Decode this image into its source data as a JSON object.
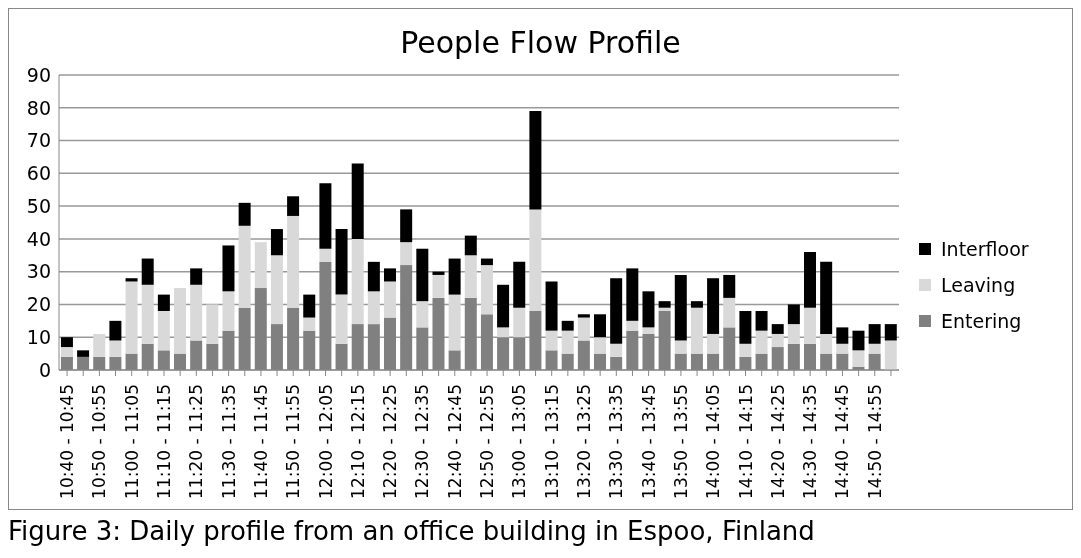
{
  "chart_data": {
    "type": "bar",
    "title": "People Flow Profile",
    "stacked": true,
    "grid": "y",
    "legend": "right",
    "categories": [
      "10:40 - 10:45",
      null,
      "10:50 - 10:55",
      null,
      "11:00 - 11:05",
      null,
      "11:10 - 11:15",
      null,
      "11:20 - 11:25",
      null,
      "11:30 - 11:35",
      null,
      "11:40 - 11:45",
      null,
      "11:50 - 11:55",
      null,
      "12:00 - 12:05",
      null,
      "12:10 - 12:15",
      null,
      "12:20 - 12:25",
      null,
      "12:30 - 12:35",
      null,
      "12:40 - 12:45",
      null,
      "12:50 - 12:55",
      null,
      "13:00 - 13:05",
      null,
      "13:10 - 13:15",
      null,
      "13:20 - 13:25",
      null,
      "13:30 - 13:35",
      null,
      "13:40 - 13:45",
      null,
      "13:50 - 13:55",
      null,
      "14:00 - 14:05",
      null,
      "14:10 - 14:15",
      null,
      "14:20 - 14:25",
      null,
      "14:30 - 14:35",
      null,
      "14:40 - 14:45",
      null,
      "14:50 - 14:55",
      null
    ],
    "ylim": [
      0,
      90
    ],
    "yticks": [
      0,
      10,
      20,
      30,
      40,
      50,
      60,
      70,
      80,
      90
    ],
    "series": [
      {
        "name": "Entering",
        "color": "#808080",
        "values": [
          4,
          4,
          4,
          4,
          5,
          8,
          6,
          5,
          9,
          8,
          12,
          19,
          25,
          14,
          19,
          12,
          33,
          8,
          14,
          14,
          16,
          32,
          13,
          22,
          6,
          22,
          17,
          10,
          10,
          18,
          6,
          5,
          9,
          5,
          4,
          12,
          11,
          18,
          5,
          5,
          5,
          13,
          4,
          5,
          7,
          8,
          8,
          5,
          5,
          1,
          5,
          0
        ]
      },
      {
        "name": "Leaving",
        "color": "#d9d9d9",
        "values": [
          3,
          0,
          7,
          5,
          22,
          18,
          12,
          20,
          17,
          12,
          12,
          25,
          14,
          21,
          28,
          4,
          4,
          15,
          26,
          10,
          11,
          7,
          8,
          7,
          17,
          13,
          15,
          3,
          9,
          31,
          6,
          7,
          7,
          5,
          4,
          3,
          2,
          1,
          4,
          14,
          6,
          9,
          4,
          7,
          4,
          6,
          11,
          6,
          3,
          5,
          3,
          9
        ]
      },
      {
        "name": "Interfloor",
        "color": "#000000",
        "values": [
          3,
          2,
          0,
          6,
          1,
          8,
          5,
          0,
          5,
          0,
          14,
          7,
          0,
          8,
          6,
          7,
          20,
          20,
          23,
          9,
          4,
          10,
          16,
          1,
          11,
          6,
          2,
          13,
          14,
          30,
          15,
          3,
          1,
          7,
          20,
          16,
          11,
          2,
          20,
          2,
          17,
          7,
          10,
          6,
          3,
          6,
          17,
          22,
          5,
          6,
          6,
          5
        ]
      }
    ],
    "annotations": [
      "Figure 3: Daily profile from an office building in Espoo, Finland"
    ]
  }
}
